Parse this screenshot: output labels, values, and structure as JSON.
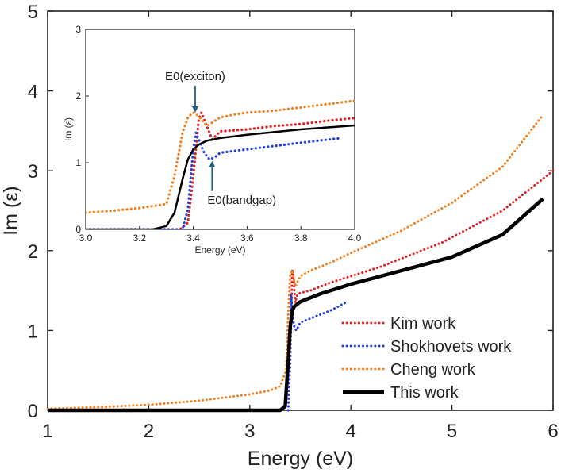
{
  "chart_data": [
    {
      "id": "main",
      "type": "line",
      "title": "",
      "xlabel": "Energy (eV)",
      "ylabel": "Im (ε)",
      "xlim": [
        1,
        6
      ],
      "ylim": [
        0,
        5
      ],
      "xticks": [
        1,
        2,
        3,
        4,
        5,
        6
      ],
      "yticks": [
        0,
        1,
        2,
        3,
        4,
        5
      ],
      "legend_position": "lower-right",
      "series": [
        {
          "name": "Kim work",
          "color": "#e02020",
          "style": "dotted",
          "x": [
            3.38,
            3.4,
            3.42,
            3.43,
            3.45,
            3.47,
            3.5,
            3.6,
            3.8,
            4.0,
            4.3,
            4.6,
            4.9,
            5.2,
            5.5,
            5.8,
            6.0
          ],
          "y": [
            0.0,
            0.6,
            1.75,
            1.7,
            1.35,
            1.45,
            1.47,
            1.5,
            1.6,
            1.68,
            1.8,
            1.95,
            2.1,
            2.3,
            2.5,
            2.8,
            3.0
          ]
        },
        {
          "name": "Shokhovets work",
          "color": "#2040e0",
          "style": "dotted",
          "x": [
            3.38,
            3.4,
            3.41,
            3.42,
            3.44,
            3.46,
            3.5,
            3.6,
            3.8,
            3.95
          ],
          "y": [
            0.0,
            0.7,
            1.45,
            1.2,
            1.05,
            1.0,
            1.1,
            1.15,
            1.25,
            1.35
          ]
        },
        {
          "name": "Cheng work",
          "color": "#f08020",
          "style": "dotted",
          "x": [
            1.0,
            1.5,
            2.0,
            2.5,
            3.0,
            3.2,
            3.3,
            3.36,
            3.38,
            3.4,
            3.42,
            3.45,
            3.5,
            3.6,
            3.8,
            4.0,
            4.5,
            5.0,
            5.5,
            5.9
          ],
          "y": [
            0.02,
            0.04,
            0.07,
            0.12,
            0.2,
            0.25,
            0.3,
            0.5,
            1.2,
            1.7,
            1.75,
            1.55,
            1.68,
            1.75,
            1.85,
            1.97,
            2.25,
            2.6,
            3.05,
            3.7
          ]
        },
        {
          "name": "This work",
          "color": "#000000",
          "style": "solid",
          "x": [
            1.0,
            2.0,
            3.0,
            3.3,
            3.35,
            3.38,
            3.4,
            3.42,
            3.44,
            3.5,
            3.7,
            4.0,
            4.5,
            5.0,
            5.5,
            5.9
          ],
          "y": [
            0.0,
            0.0,
            0.0,
            0.0,
            0.05,
            0.6,
            1.05,
            1.25,
            1.3,
            1.36,
            1.46,
            1.58,
            1.75,
            1.92,
            2.2,
            2.65
          ]
        }
      ]
    },
    {
      "id": "inset",
      "type": "line",
      "title": "",
      "xlabel": "Energy (eV)",
      "ylabel": "Im (ε)",
      "xlim": [
        3.0,
        4.0
      ],
      "ylim": [
        0,
        3
      ],
      "xticks": [
        "3.0",
        "3.2",
        "3.4",
        "3.6",
        "3.8",
        "4.0"
      ],
      "yticks": [
        "0",
        "1",
        "2",
        "3"
      ],
      "annotations": [
        {
          "text": "E0(exciton)",
          "x": 3.41,
          "y": 1.75
        },
        {
          "text": "E0(bandgap)",
          "x": 3.47,
          "y": 1.05
        }
      ],
      "series": [
        {
          "name": "Kim work",
          "color": "#e02020",
          "style": "dotted",
          "x": [
            3.0,
            3.35,
            3.38,
            3.4,
            3.42,
            3.43,
            3.45,
            3.47,
            3.5,
            3.6,
            3.7,
            3.8,
            3.9,
            4.0
          ],
          "y": [
            0.0,
            0.0,
            0.1,
            0.8,
            1.65,
            1.75,
            1.55,
            1.35,
            1.47,
            1.5,
            1.55,
            1.58,
            1.63,
            1.67
          ]
        },
        {
          "name": "Shokhovets work",
          "color": "#2040e0",
          "style": "dotted",
          "x": [
            3.0,
            3.36,
            3.38,
            3.4,
            3.41,
            3.42,
            3.44,
            3.46,
            3.48,
            3.5,
            3.6,
            3.7,
            3.8,
            3.95
          ],
          "y": [
            0.0,
            0.0,
            0.3,
            1.2,
            1.45,
            1.35,
            1.15,
            1.05,
            1.08,
            1.15,
            1.2,
            1.25,
            1.3,
            1.37
          ]
        },
        {
          "name": "Cheng work",
          "color": "#f08020",
          "style": "dotted",
          "x": [
            3.0,
            3.1,
            3.2,
            3.3,
            3.33,
            3.36,
            3.38,
            3.4,
            3.42,
            3.45,
            3.5,
            3.55,
            3.6,
            3.7,
            3.8,
            3.9,
            4.0
          ],
          "y": [
            0.25,
            0.28,
            0.32,
            0.38,
            0.8,
            1.45,
            1.68,
            1.75,
            1.7,
            1.55,
            1.68,
            1.72,
            1.75,
            1.78,
            1.83,
            1.88,
            1.93
          ]
        },
        {
          "name": "This work",
          "color": "#000000",
          "style": "solid",
          "x": [
            3.0,
            3.25,
            3.3,
            3.33,
            3.36,
            3.38,
            3.4,
            3.42,
            3.45,
            3.5,
            3.6,
            3.7,
            3.8,
            3.9,
            4.0
          ],
          "y": [
            0.0,
            0.0,
            0.05,
            0.25,
            0.75,
            1.05,
            1.2,
            1.27,
            1.33,
            1.37,
            1.42,
            1.46,
            1.5,
            1.53,
            1.56
          ]
        }
      ]
    }
  ]
}
